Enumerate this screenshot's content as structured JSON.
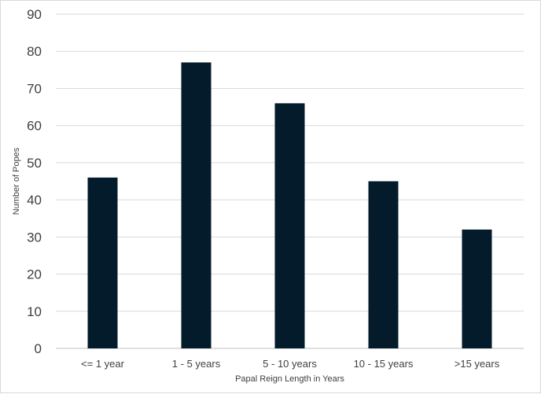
{
  "chart_data": {
    "type": "bar",
    "title": "",
    "categories": [
      "<= 1 year",
      "1 - 5 years",
      "5 - 10 years",
      "10 - 15 years",
      ">15 years"
    ],
    "values": [
      46,
      77,
      66,
      45,
      32
    ],
    "xlabel": "Papal Reign Length in Years",
    "ylabel": "Number of Popes",
    "ylim": [
      0,
      90
    ],
    "yticks": [
      "0",
      "10",
      "20",
      "30",
      "40",
      "50",
      "60",
      "70",
      "80",
      "90"
    ],
    "grid": true,
    "legend": "none",
    "bar_color": "#041b2c"
  }
}
